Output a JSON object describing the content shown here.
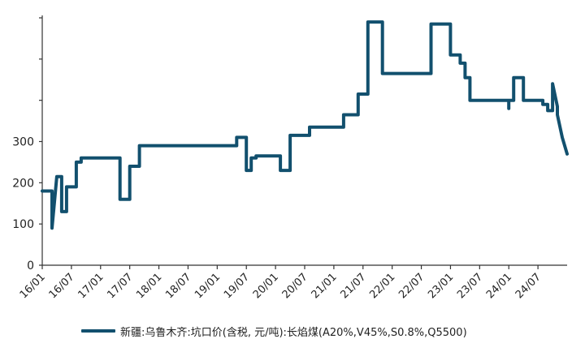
{
  "chart_data": {
    "type": "line",
    "series": [
      {
        "name": "新疆:乌鲁木齐:坑口价(含税,  元/吨):长焰煤(A20%,V45%,S0.8%,Q5500)",
        "color": "#12506e",
        "points": [
          [
            "2016-01",
            180
          ],
          [
            "2016-03",
            180
          ],
          [
            "2016-03",
            90
          ],
          [
            "2016-03",
            90
          ],
          [
            "2016-04",
            215
          ],
          [
            "2016-05",
            215
          ],
          [
            "2016-05",
            130
          ],
          [
            "2016-06",
            130
          ],
          [
            "2016-06",
            190
          ],
          [
            "2016-08",
            190
          ],
          [
            "2016-08",
            250
          ],
          [
            "2016-09",
            250
          ],
          [
            "2016-09",
            260
          ],
          [
            "2017-05",
            260
          ],
          [
            "2017-05",
            160
          ],
          [
            "2017-07",
            160
          ],
          [
            "2017-07",
            240
          ],
          [
            "2017-09",
            240
          ],
          [
            "2017-09",
            290
          ],
          [
            "2019-05",
            290
          ],
          [
            "2019-05",
            310
          ],
          [
            "2019-07",
            310
          ],
          [
            "2019-07",
            230
          ],
          [
            "2019-08",
            230
          ],
          [
            "2019-08",
            260
          ],
          [
            "2019-09",
            260
          ],
          [
            "2019-09",
            265
          ],
          [
            "2020-02",
            265
          ],
          [
            "2020-02",
            230
          ],
          [
            "2020-04",
            230
          ],
          [
            "2020-04",
            315
          ],
          [
            "2020-08",
            315
          ],
          [
            "2020-08",
            335
          ],
          [
            "2021-03",
            335
          ],
          [
            "2021-03",
            365
          ],
          [
            "2021-06",
            365
          ],
          [
            "2021-06",
            415
          ],
          [
            "2021-08",
            415
          ],
          [
            "2021-08",
            590
          ],
          [
            "2021-11",
            590
          ],
          [
            "2021-11",
            465
          ],
          [
            "2022-09",
            465
          ],
          [
            "2022-09",
            585
          ],
          [
            "2023-01",
            585
          ],
          [
            "2023-01",
            510
          ],
          [
            "2023-03",
            510
          ],
          [
            "2023-03",
            490
          ],
          [
            "2023-04",
            490
          ],
          [
            "2023-04",
            455
          ],
          [
            "2023-05",
            455
          ],
          [
            "2023-05",
            400
          ],
          [
            "2024-01",
            400
          ],
          [
            "2024-01",
            380
          ],
          [
            "2024-01",
            400
          ],
          [
            "2024-02",
            400
          ],
          [
            "2024-02",
            455
          ],
          [
            "2024-04",
            455
          ],
          [
            "2024-04",
            400
          ],
          [
            "2024-08",
            400
          ],
          [
            "2024-08",
            390
          ],
          [
            "2024-09",
            390
          ],
          [
            "2024-09",
            375
          ],
          [
            "2024-10",
            375
          ],
          [
            "2024-10",
            440
          ],
          [
            "2024-11",
            385
          ],
          [
            "2024-11",
            365
          ],
          [
            "2024-12",
            310
          ],
          [
            "2024-12",
            310
          ],
          [
            "2025-01",
            270
          ]
        ]
      }
    ],
    "ylim": [
      0,
      600
    ],
    "yticks": [
      "0",
      "100",
      "200",
      "300",
      "",
      "",
      ""
    ],
    "xticks": [
      "16/01",
      "16/07",
      "17/01",
      "17/07",
      "18/01",
      "18/07",
      "19/01",
      "19/07",
      "20/01",
      "20/07",
      "21/01",
      "21/07",
      "22/01",
      "22/07",
      "23/01",
      "23/07",
      "24/01",
      "24/07"
    ],
    "xlim": [
      "2016-01",
      "2025-01"
    ],
    "grid": false,
    "legend_position": "bottom"
  }
}
